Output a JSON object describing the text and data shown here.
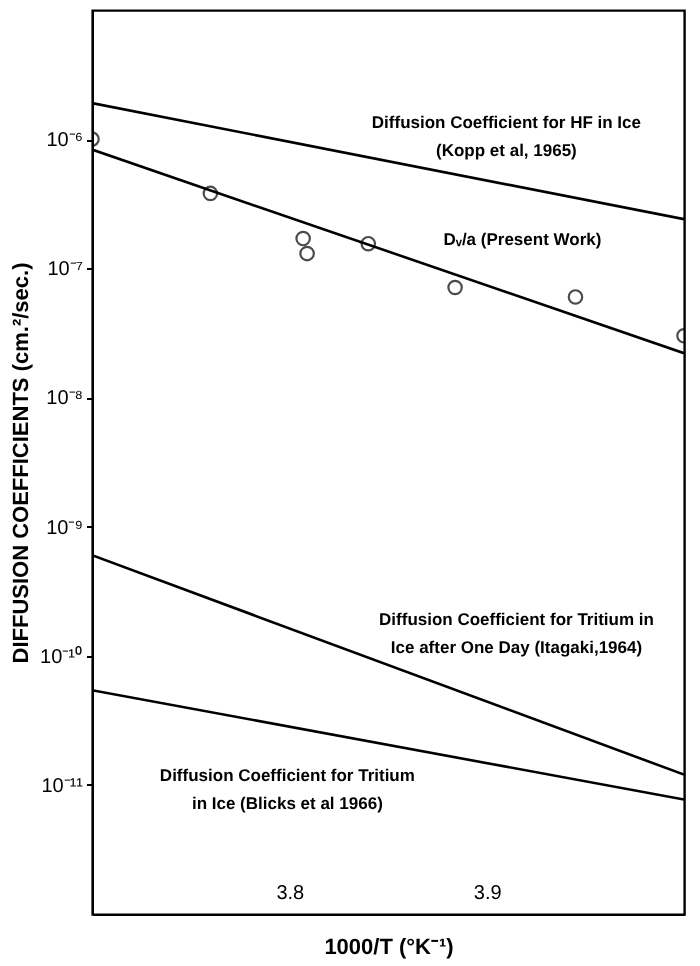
{
  "chart_data": {
    "type": "line",
    "xlabel": "1000/T (°K⁻¹)",
    "ylabel": "DIFFUSION COEFFICIENTS (cm.²/sec.)",
    "log": "y",
    "xlim": [
      3.7,
      4.0
    ],
    "ylim": [
      1e-12,
      1e-05
    ],
    "xticks": [
      3.8,
      3.9
    ],
    "yticks": [
      {
        "value": 1e-06,
        "label": "10⁻⁶"
      },
      {
        "value": 1e-07,
        "label": "10⁻⁷"
      },
      {
        "value": 1e-08,
        "label": "10⁻⁸"
      },
      {
        "value": 1e-09,
        "label": "10⁻⁹"
      },
      {
        "value": 1e-10,
        "label": "10⁻¹⁰"
      },
      {
        "value": 1e-11,
        "label": "10⁻¹¹"
      }
    ],
    "grid": false,
    "line_style": "solid",
    "series": [
      {
        "color": "#000000",
        "x": [
          3.7,
          4.0
        ],
        "values": [
          1.9e-06,
          2.4e-07
        ]
      },
      {
        "color": "#000000",
        "x": [
          3.7,
          4.0
        ],
        "values": [
          8.3e-07,
          2.2e-08
        ]
      },
      {
        "type": "scatter",
        "color": "#000000",
        "marker": "circle",
        "x": [
          3.7,
          3.76,
          3.807,
          3.809,
          3.84,
          3.884,
          3.945,
          4.0
        ],
        "values": [
          1e-06,
          3.8e-07,
          1.7e-07,
          1.3e-07,
          1.55e-07,
          7.1e-08,
          6e-08,
          3e-08
        ]
      },
      {
        "color": "#000000",
        "x": [
          3.7,
          4.0
        ],
        "values": [
          6e-10,
          1.2e-11
        ]
      },
      {
        "color": "#000000",
        "x": [
          3.7,
          4.0
        ],
        "values": [
          5.4e-11,
          7.7e-12
        ]
      }
    ],
    "annotations": [
      "Diffusion Coefficient for HF in Ice\n(Kopp et al, 1965)",
      "Dᵥ/a (Present Work)",
      "Diffusion Coefficient for Tritium in\nIce after One Day (Itagaki,1964)",
      "Diffusion Coefficient for Tritium\nin Ice (Blicks et al 1966)"
    ]
  }
}
